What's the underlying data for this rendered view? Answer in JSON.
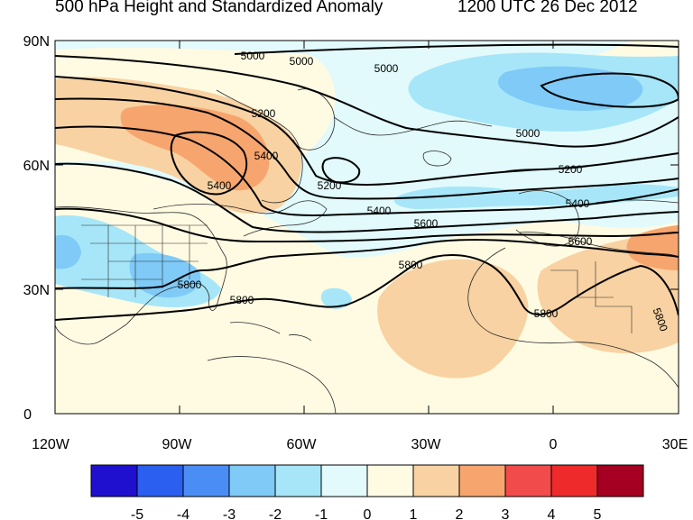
{
  "title_left": "500 hPa Height and Standardized Anomaly",
  "title_right": "1200 UTC 26 Dec 2012",
  "lat_ticks": [
    "90N",
    "60N",
    "30N",
    "0"
  ],
  "lon_ticks": [
    "120W",
    "90W",
    "60W",
    "30W",
    "0",
    "30E"
  ],
  "contour_levels": [
    "5000",
    "5000",
    "5000",
    "5000",
    "5200",
    "5200",
    "5200",
    "5400",
    "5400",
    "5400",
    "5400",
    "5600",
    "5600",
    "5800",
    "5800",
    "5800",
    "5800",
    "5800"
  ],
  "colorbar": {
    "labels": [
      "-5",
      "-4",
      "-3",
      "-2",
      "-1",
      "0",
      "1",
      "2",
      "3",
      "4",
      "5"
    ],
    "colors": [
      "#1f0fcf",
      "#2b5ff0",
      "#4a8df5",
      "#7fcaf7",
      "#a6e6f8",
      "#e2fafc",
      "#fffbe3",
      "#f8d2a2",
      "#f7a56e",
      "#f24b4b",
      "#ef2a2a",
      "#a50021"
    ]
  },
  "colors": {
    "land_anomaly_warm": "#f8d2a2",
    "land_anomaly_warmer": "#f7a56e",
    "cool": "#a6e6f8",
    "cooler": "#7fcaf7",
    "neutral_cool": "#e2fafc",
    "neutral_warm": "#fffbe3"
  }
}
